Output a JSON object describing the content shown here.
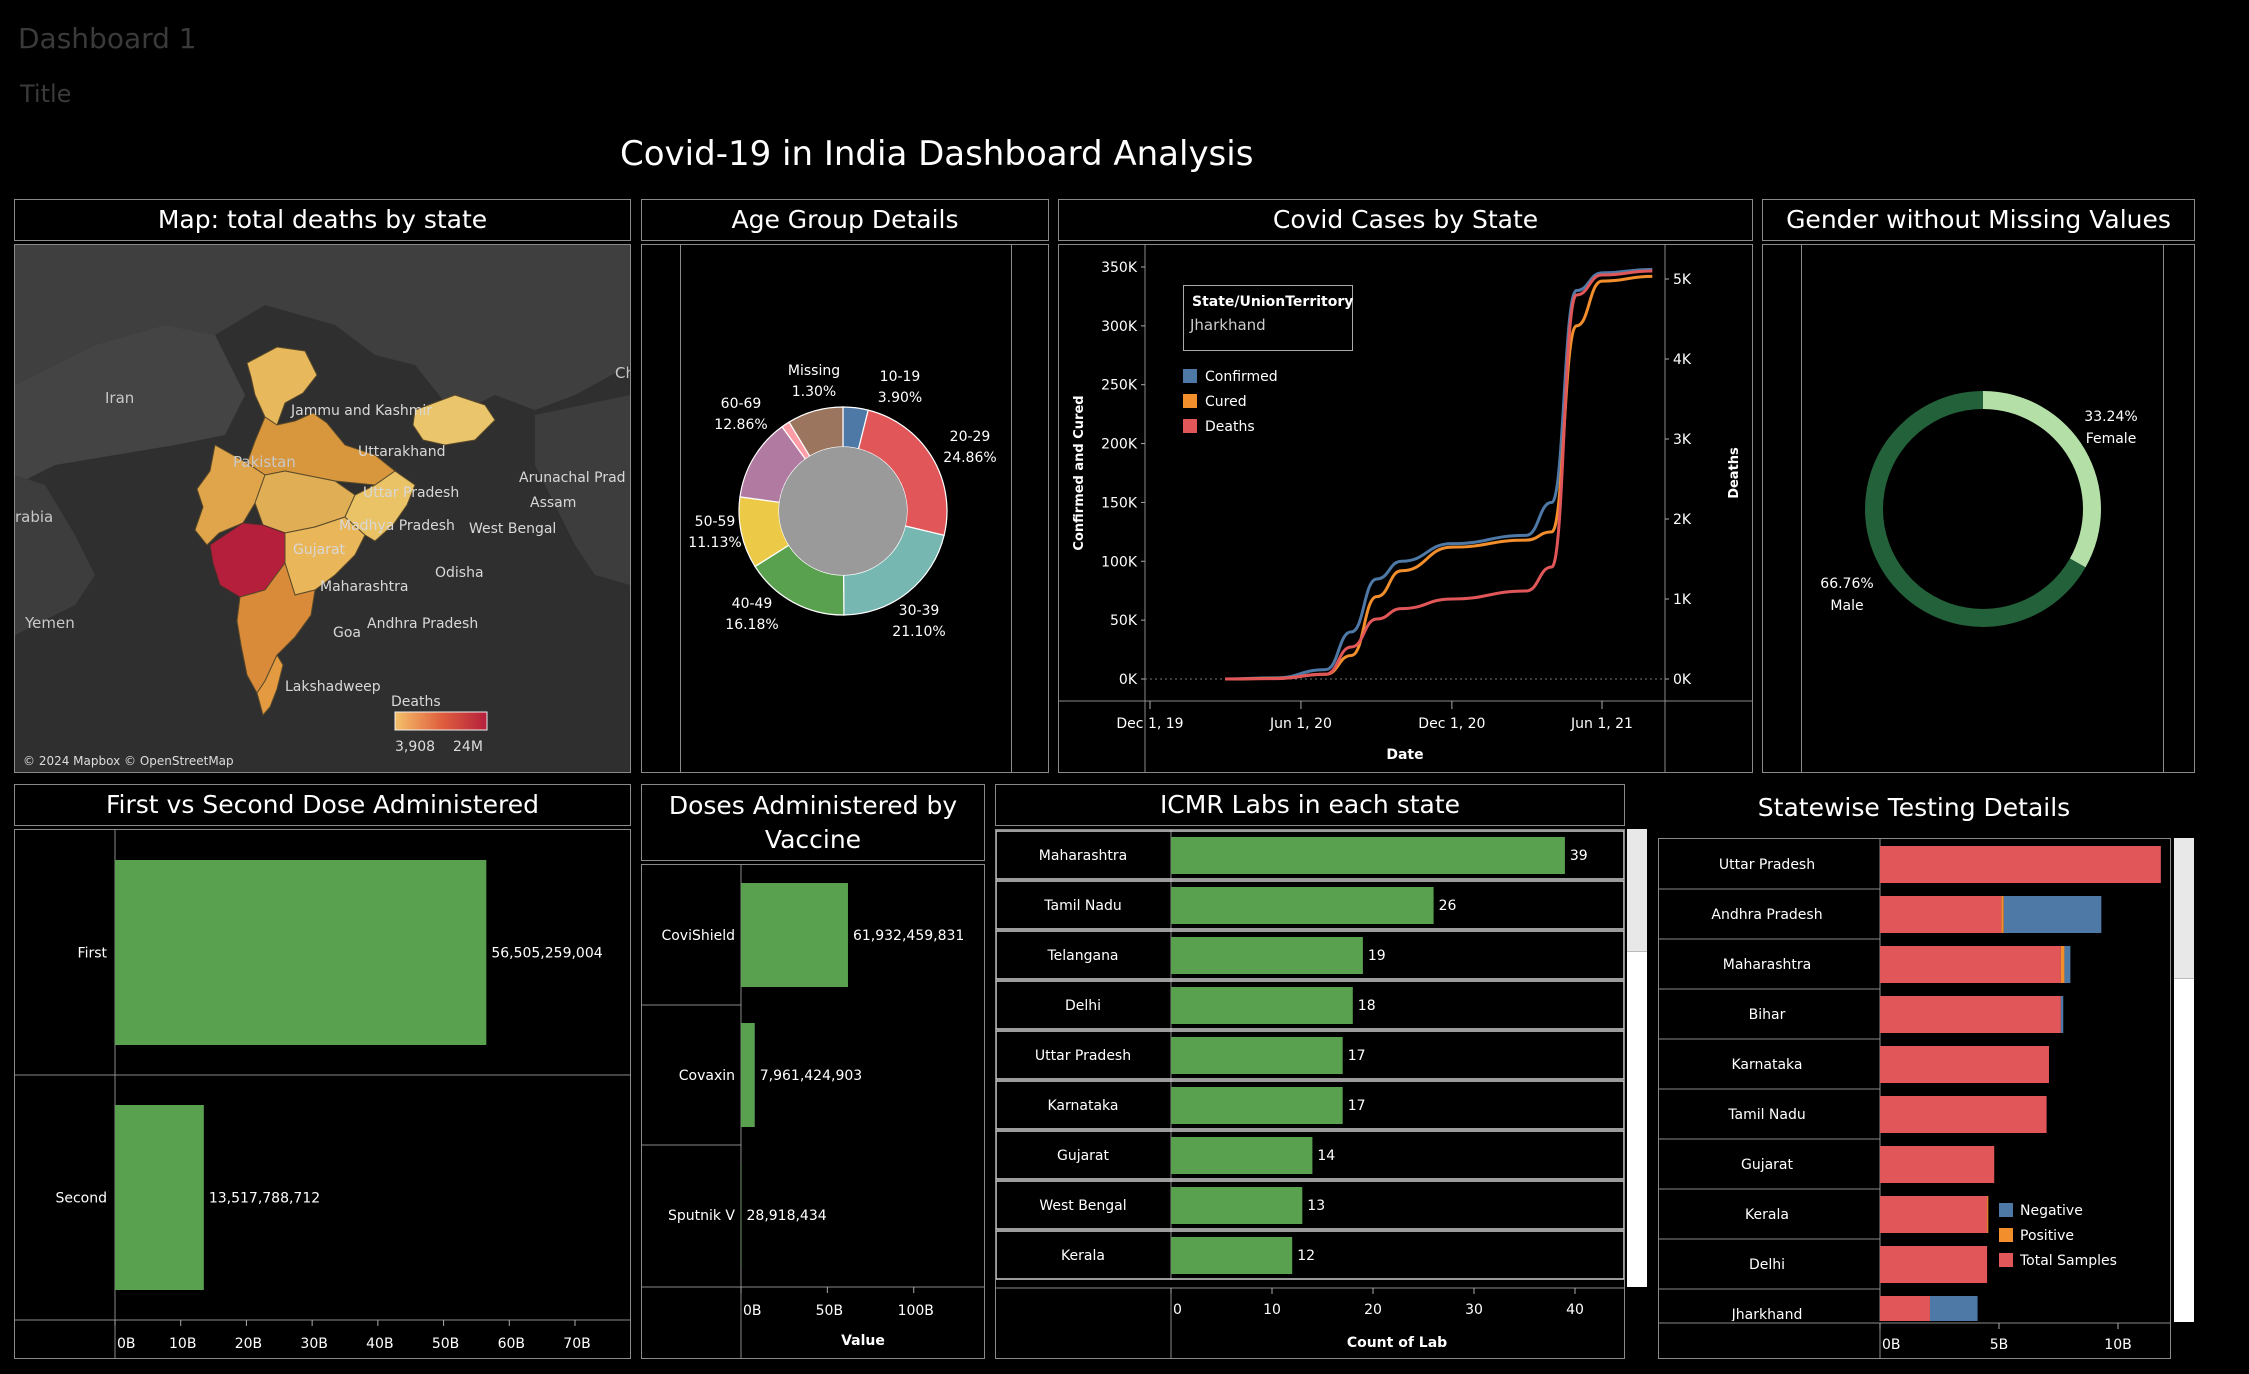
{
  "header": {
    "dashboard_name": "Dashboard 1",
    "title_placeholder": "Title",
    "main_title": "Covid-19 in India Dashboard Analysis"
  },
  "colors": {
    "bar_green": "#59a14f",
    "confirmed": "#4e79a7",
    "cured": "#f28e2b",
    "deaths": "#e15759",
    "female": "#b4e0a8",
    "male": "#23613a",
    "border": "#8a8a8a"
  },
  "map_panel": {
    "title": "Map: total deaths by state",
    "country_labels": [
      "Iran",
      "Pakistan",
      "rabia",
      "Yemen",
      "Ch"
    ],
    "state_labels": [
      "Jammu and Kashmir",
      "Uttarakhand",
      "Uttar Pradesh",
      "Arunachal Prad",
      "Assam",
      "Madhya Pradesh",
      "West Bengal",
      "Gujarat",
      "Maharashtra",
      "Odisha",
      "Goa",
      "Andhra Pradesh",
      "Lakshadweep"
    ],
    "legend_title": "Deaths",
    "legend_min": "3,908",
    "legend_max": "24M",
    "attribution": "© 2024 Mapbox © OpenStreetMap"
  },
  "age_panel": {
    "title": "Age Group Details",
    "slices": [
      {
        "group": "10-19",
        "pct": "3.90%",
        "value": 3.9,
        "color": "#4e79a7"
      },
      {
        "group": "20-29",
        "pct": "24.86%",
        "value": 24.86,
        "color": "#e15759"
      },
      {
        "group": "30-39",
        "pct": "21.10%",
        "value": 21.1,
        "color": "#76b7b2"
      },
      {
        "group": "40-49",
        "pct": "16.18%",
        "value": 16.18,
        "color": "#59a14f"
      },
      {
        "group": "50-59",
        "pct": "11.13%",
        "value": 11.13,
        "color": "#edc948"
      },
      {
        "group": "60-69",
        "pct": "12.86%",
        "value": 12.86,
        "color": "#b07aa1"
      },
      {
        "group": "Missing",
        "pct": "1.30%",
        "value": 1.3,
        "color": "#ff9da7"
      }
    ]
  },
  "cases_panel": {
    "title": "Covid Cases by State",
    "filter_title": "State/UnionTerritory",
    "filter_value": "Jharkhand",
    "legend": [
      "Confirmed",
      "Cured",
      "Deaths"
    ],
    "y_left_label": "Confirmed and Cured",
    "y_right_label": "Deaths",
    "x_label": "Date",
    "y_left_ticks": [
      "350K",
      "300K",
      "250K",
      "200K",
      "150K",
      "100K",
      "50K",
      "0K"
    ],
    "y_right_ticks": [
      "5K",
      "4K",
      "3K",
      "2K",
      "1K",
      "0K"
    ],
    "x_ticks": [
      "Dec 1, 19",
      "Jun 1, 20",
      "Dec 1, 20",
      "Jun 1, 21"
    ]
  },
  "gender_panel": {
    "title": "Gender without Missing Values",
    "female_pct": "33.24%",
    "female_label": "Female",
    "female_value": 33.24,
    "male_pct": "66.76%",
    "male_label": "Male",
    "male_value": 66.76
  },
  "dose_panel": {
    "title": "First vs Second Dose Administered",
    "x_ticks": [
      "0B",
      "10B",
      "20B",
      "30B",
      "40B",
      "50B",
      "60B",
      "70B"
    ],
    "bars": [
      {
        "label": "First",
        "value": 56505259004,
        "text": "56,505,259,004"
      },
      {
        "label": "Second",
        "value": 13517788712,
        "text": "13,517,788,712"
      }
    ]
  },
  "vaccine_panel": {
    "title": "Doses Administered by Vaccine",
    "x_label": "Value",
    "x_ticks": [
      "0B",
      "50B",
      "100B"
    ],
    "bars": [
      {
        "label": "CoviShield",
        "value": 61932459831,
        "text": "61,932,459,831"
      },
      {
        "label": "Covaxin",
        "value": 7961424903,
        "text": "7,961,424,903"
      },
      {
        "label": "Sputnik V",
        "value": 28918434,
        "text": "28,918,434"
      }
    ]
  },
  "labs_panel": {
    "title": "ICMR Labs in each state",
    "x_label": "Count of Lab",
    "x_ticks": [
      "0",
      "10",
      "20",
      "30",
      "40"
    ],
    "bars": [
      {
        "label": "Maharashtra",
        "value": 39
      },
      {
        "label": "Tamil Nadu",
        "value": 26
      },
      {
        "label": "Telangana",
        "value": 19
      },
      {
        "label": "Delhi",
        "value": 18
      },
      {
        "label": "Uttar Pradesh",
        "value": 17
      },
      {
        "label": "Karnataka",
        "value": 17
      },
      {
        "label": "Gujarat",
        "value": 14
      },
      {
        "label": "West Bengal",
        "value": 13
      },
      {
        "label": "Kerala",
        "value": 12
      }
    ]
  },
  "testing_panel": {
    "title": "Statewise Testing Details",
    "x_ticks": [
      "0B",
      "5B",
      "10B"
    ],
    "legend": [
      "Negative",
      "Positive",
      "Total Samples"
    ],
    "rows": [
      {
        "label": "Uttar Pradesh",
        "total": 11.8,
        "positive": 0.0,
        "negative": 0.0
      },
      {
        "label": "Andhra Pradesh",
        "total": 5.1,
        "positive": 0.1,
        "negative": 4.1
      },
      {
        "label": "Maharashtra",
        "total": 7.6,
        "positive": 0.15,
        "negative": 0.25
      },
      {
        "label": "Bihar",
        "total": 7.6,
        "positive": 0.0,
        "negative": 0.1
      },
      {
        "label": "Karnataka",
        "total": 7.1,
        "positive": 0.0,
        "negative": 0.0
      },
      {
        "label": "Tamil Nadu",
        "total": 7.0,
        "positive": 0.0,
        "negative": 0.0
      },
      {
        "label": "Gujarat",
        "total": 4.8,
        "positive": 0.0,
        "negative": 0.0
      },
      {
        "label": "Kerala",
        "total": 4.5,
        "positive": 0.05,
        "negative": 0.0
      },
      {
        "label": "Delhi",
        "total": 4.5,
        "positive": 0.0,
        "negative": 0.0
      },
      {
        "label": "Jharkhand",
        "total": 2.1,
        "positive": 0.0,
        "negative": 2.0
      }
    ]
  },
  "chart_data": [
    {
      "type": "pie",
      "title": "Age Group Details",
      "categories": [
        "10-19",
        "20-29",
        "30-39",
        "40-49",
        "50-59",
        "60-69",
        "Missing"
      ],
      "values": [
        3.9,
        24.86,
        21.1,
        16.18,
        11.13,
        12.86,
        1.3
      ]
    },
    {
      "type": "line",
      "title": "Covid Cases by State",
      "x": [
        "2020-03-01",
        "2020-05-01",
        "2020-07-01",
        "2020-08-01",
        "2020-09-01",
        "2020-10-01",
        "2020-12-01",
        "2021-03-01",
        "2021-04-01",
        "2021-05-01",
        "2021-06-01",
        "2021-08-01"
      ],
      "series": [
        {
          "name": "Confirmed",
          "axis": "left",
          "values": [
            0,
            1000,
            8000,
            40000,
            85000,
            100000,
            115000,
            122000,
            150000,
            330000,
            345000,
            348000
          ]
        },
        {
          "name": "Cured",
          "axis": "left",
          "values": [
            0,
            500,
            4000,
            20000,
            70000,
            92000,
            112000,
            118000,
            125000,
            300000,
            338000,
            342000
          ]
        },
        {
          "name": "Deaths",
          "axis": "right",
          "values": [
            0,
            5,
            60,
            400,
            750,
            880,
            1000,
            1100,
            1400,
            4800,
            5050,
            5100
          ]
        }
      ],
      "xlabel": "Date",
      "ylabel": "Confirmed and Cured",
      "y2label": "Deaths",
      "ylim": [
        0,
        350000
      ],
      "y2lim": [
        0,
        5000
      ]
    },
    {
      "type": "pie",
      "title": "Gender without Missing Values",
      "categories": [
        "Female",
        "Male"
      ],
      "values": [
        33.24,
        66.76
      ]
    },
    {
      "type": "bar",
      "title": "First vs Second Dose Administered",
      "categories": [
        "First",
        "Second"
      ],
      "values": [
        56505259004,
        13517788712
      ],
      "xlim": [
        0,
        70000000000
      ]
    },
    {
      "type": "bar",
      "title": "Doses Administered by Vaccine",
      "categories": [
        "CoviShield",
        "Covaxin",
        "Sputnik V"
      ],
      "values": [
        61932459831,
        7961424903,
        28918434
      ],
      "xlabel": "Value"
    },
    {
      "type": "bar",
      "title": "ICMR Labs in each state",
      "categories": [
        "Maharashtra",
        "Tamil Nadu",
        "Telangana",
        "Delhi",
        "Uttar Pradesh",
        "Karnataka",
        "Gujarat",
        "West Bengal",
        "Kerala"
      ],
      "values": [
        39,
        26,
        19,
        18,
        17,
        17,
        14,
        13,
        12
      ],
      "xlabel": "Count of Lab",
      "xlim": [
        0,
        40
      ]
    },
    {
      "type": "bar",
      "title": "Statewise Testing Details",
      "categories": [
        "Uttar Pradesh",
        "Andhra Pradesh",
        "Maharashtra",
        "Bihar",
        "Karnataka",
        "Tamil Nadu",
        "Gujarat",
        "Kerala",
        "Delhi",
        "Jharkhand"
      ],
      "series": [
        {
          "name": "Total Samples",
          "values": [
            11.8,
            5.1,
            7.6,
            7.6,
            7.1,
            7.0,
            4.8,
            4.5,
            4.5,
            2.1
          ]
        },
        {
          "name": "Positive",
          "values": [
            0,
            0.1,
            0.15,
            0,
            0,
            0,
            0,
            0.05,
            0,
            0
          ]
        },
        {
          "name": "Negative",
          "values": [
            0,
            4.1,
            0.25,
            0.1,
            0,
            0,
            0,
            0,
            0,
            2.0
          ]
        }
      ],
      "unit": "B"
    }
  ]
}
